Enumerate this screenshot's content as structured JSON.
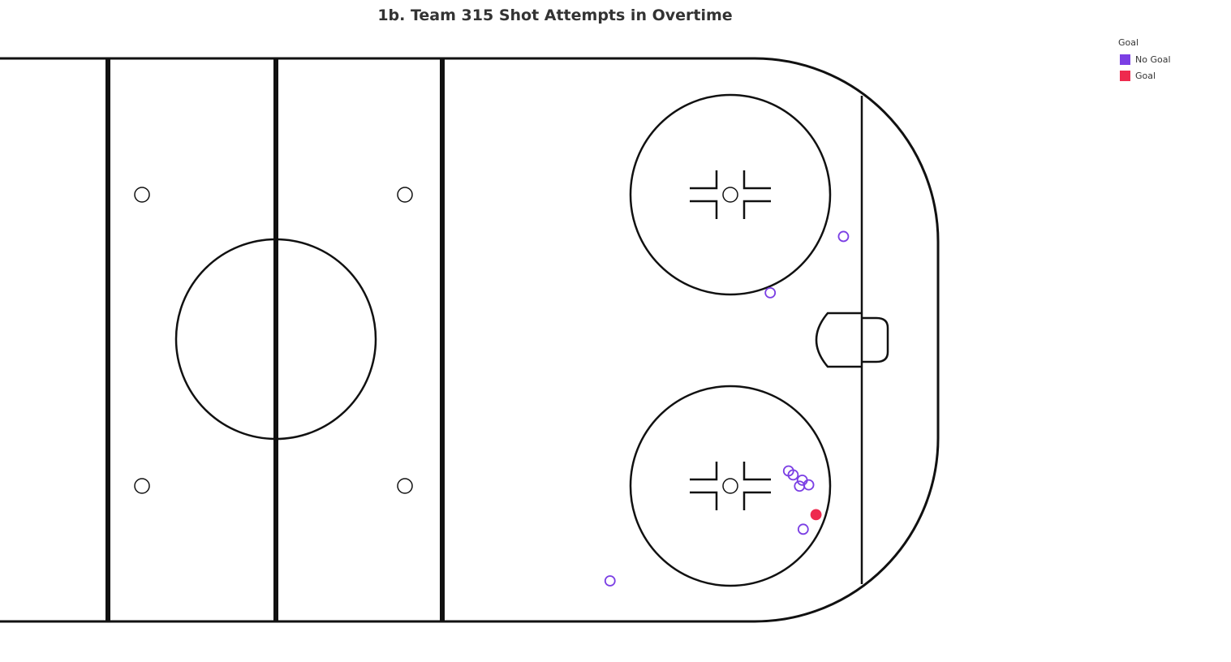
{
  "chart_data": {
    "type": "scatter",
    "title": "1b. Team 315 Shot Attempts in Overtime",
    "legend": {
      "title": "Goal",
      "placement": "top-right",
      "entries": [
        {
          "label": "No Goal",
          "color": "#7b3fe4",
          "marker": "hollow-circle"
        },
        {
          "label": "Goal",
          "color": "#ee2a4e",
          "marker": "filled-circle"
        }
      ]
    },
    "background": "hockey-rink-offensive-half",
    "xlim": [
      0,
      100
    ],
    "ylim": [
      -42.5,
      42.5
    ],
    "grid": false,
    "series": [
      {
        "name": "No Goal",
        "color": "#7b3fe4",
        "points": [
          {
            "x": 87,
            "y": 15.5
          },
          {
            "x": 79,
            "y": 7
          },
          {
            "x": 81,
            "y": -19.9
          },
          {
            "x": 81.5,
            "y": -20.5
          },
          {
            "x": 82.5,
            "y": -21.3
          },
          {
            "x": 82.2,
            "y": -22.2
          },
          {
            "x": 83.2,
            "y": -22
          },
          {
            "x": 82.6,
            "y": -28.7
          },
          {
            "x": 61.5,
            "y": -36.5
          }
        ]
      },
      {
        "name": "Goal",
        "color": "#ee2a4e",
        "points": [
          {
            "x": 84,
            "y": -26.5
          }
        ]
      }
    ]
  }
}
